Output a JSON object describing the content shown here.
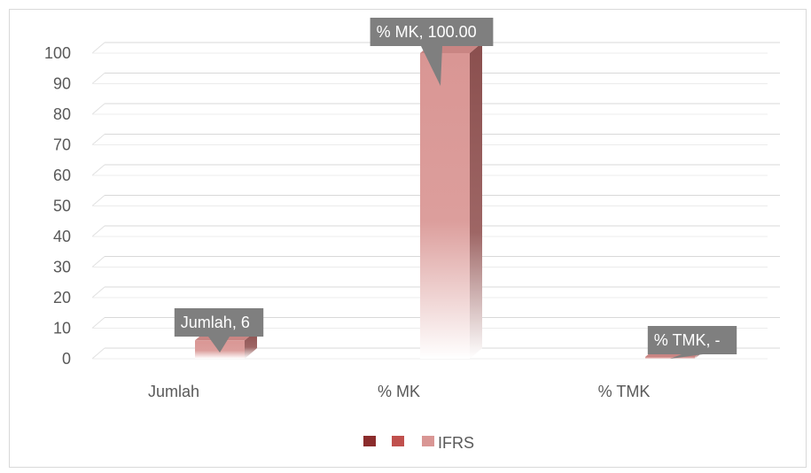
{
  "chart_data": {
    "type": "bar",
    "categories": [
      "Jumlah",
      "% MK",
      "% TMK"
    ],
    "series": [
      {
        "name": "",
        "color": "#8b2c2c",
        "values": [
          0,
          0,
          0
        ]
      },
      {
        "name": "",
        "color": "#c0504d",
        "values": [
          0,
          0,
          0
        ]
      },
      {
        "name": "IFRS",
        "color": "#d99694",
        "values": [
          6,
          100,
          0
        ]
      }
    ],
    "data_labels": [
      "Jumlah, 6",
      "% MK,  100.00",
      "% TMK,  -"
    ],
    "ylim": [
      0,
      100
    ],
    "yticks": [
      "0",
      "10",
      "20",
      "30",
      "40",
      "50",
      "60",
      "70",
      "80",
      "90",
      "100"
    ],
    "grid": true,
    "legend": "bottom",
    "label_box_color": "#7f7f7f"
  }
}
